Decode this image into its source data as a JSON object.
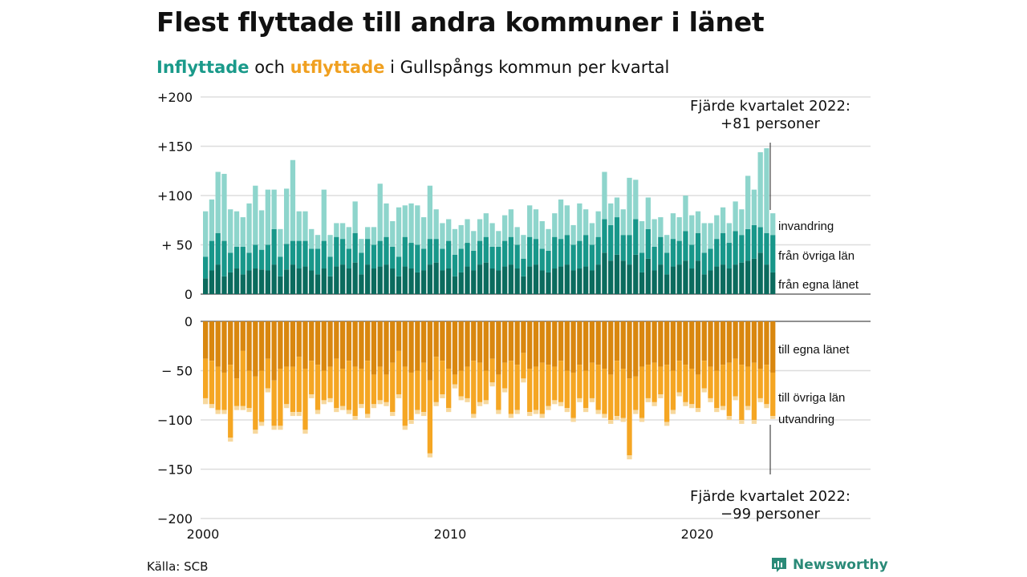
{
  "title": "Flest flyttade till andra kommuner i länet",
  "subtitle": {
    "part1": "Inflyttade",
    "part2": " och ",
    "part3": "utflyttade",
    "part4": " i Gullspångs kommun per kvartal"
  },
  "source": "Källa: SCB",
  "logo": "Newsworthy",
  "colors": {
    "in_egna": "#0b6b5e",
    "in_ovriga": "#18978a",
    "in_invandring": "#8ed5cc",
    "out_egna": "#d9870f",
    "out_ovriga": "#f5a623",
    "out_utvandring": "#f7d89d"
  },
  "chart_data": [
    {
      "type": "bar",
      "stacked": true,
      "x_ticks": [
        "2000",
        "2010",
        "2020"
      ],
      "y_ticks": [
        "+200",
        "+150",
        "+100",
        "+ 50",
        "0"
      ],
      "ylim": [
        0,
        200
      ],
      "x": [
        "2000Q1",
        "2000Q2",
        "2000Q3",
        "2000Q4",
        "2001Q1",
        "2001Q2",
        "2001Q3",
        "2001Q4",
        "2002Q1",
        "2002Q2",
        "2002Q3",
        "2002Q4",
        "2003Q1",
        "2003Q2",
        "2003Q3",
        "2003Q4",
        "2004Q1",
        "2004Q2",
        "2004Q3",
        "2004Q4",
        "2005Q1",
        "2005Q2",
        "2005Q3",
        "2005Q4",
        "2006Q1",
        "2006Q2",
        "2006Q3",
        "2006Q4",
        "2007Q1",
        "2007Q2",
        "2007Q3",
        "2007Q4",
        "2008Q1",
        "2008Q2",
        "2008Q3",
        "2008Q4",
        "2009Q1",
        "2009Q2",
        "2009Q3",
        "2009Q4",
        "2010Q1",
        "2010Q2",
        "2010Q3",
        "2010Q4",
        "2011Q1",
        "2011Q2",
        "2011Q3",
        "2011Q4",
        "2012Q1",
        "2012Q2",
        "2012Q3",
        "2012Q4",
        "2013Q1",
        "2013Q2",
        "2013Q3",
        "2013Q4",
        "2014Q1",
        "2014Q2",
        "2014Q3",
        "2014Q4",
        "2015Q1",
        "2015Q2",
        "2015Q3",
        "2015Q4",
        "2016Q1",
        "2016Q2",
        "2016Q3",
        "2016Q4",
        "2017Q1",
        "2017Q2",
        "2017Q3",
        "2017Q4",
        "2018Q1",
        "2018Q2",
        "2018Q3",
        "2018Q4",
        "2019Q1",
        "2019Q2",
        "2019Q3",
        "2019Q4",
        "2020Q1",
        "2020Q2",
        "2020Q3",
        "2020Q4",
        "2021Q1",
        "2021Q2",
        "2021Q3",
        "2021Q4",
        "2022Q1",
        "2022Q2",
        "2022Q3",
        "2022Q4"
      ],
      "series": [
        {
          "name": "från egna länet",
          "values": [
            16,
            24,
            30,
            18,
            22,
            26,
            20,
            24,
            26,
            25,
            24,
            30,
            18,
            25,
            30,
            26,
            28,
            24,
            20,
            26,
            18,
            28,
            30,
            26,
            32,
            20,
            30,
            26,
            28,
            30,
            26,
            18,
            28,
            26,
            22,
            24,
            30,
            32,
            24,
            26,
            18,
            22,
            28,
            24,
            30,
            32,
            26,
            24,
            28,
            30,
            26,
            18,
            28,
            30,
            24,
            22,
            26,
            28,
            30,
            24,
            26,
            28,
            24,
            30,
            42,
            34,
            40,
            34,
            30,
            40,
            22,
            36,
            24,
            30,
            20,
            28,
            30,
            34,
            26,
            34,
            20,
            24,
            28,
            30,
            26,
            30,
            32,
            34,
            36,
            42,
            30,
            22
          ],
          "values_note": "from the bottom group"
        },
        {
          "name": "från övriga län",
          "values": [
            22,
            30,
            32,
            36,
            20,
            22,
            28,
            18,
            24,
            20,
            26,
            36,
            20,
            26,
            24,
            28,
            26,
            22,
            26,
            28,
            20,
            30,
            26,
            20,
            30,
            22,
            26,
            24,
            26,
            28,
            22,
            20,
            30,
            26,
            28,
            22,
            26,
            24,
            22,
            28,
            22,
            24,
            24,
            20,
            24,
            26,
            22,
            24,
            26,
            28,
            24,
            18,
            30,
            26,
            22,
            22,
            32,
            28,
            30,
            26,
            28,
            32,
            26,
            28,
            34,
            36,
            38,
            26,
            30,
            36,
            20,
            30,
            24,
            28,
            22,
            28,
            24,
            30,
            24,
            28,
            22,
            22,
            28,
            32,
            26,
            34,
            28,
            32,
            34,
            26,
            32,
            38
          ]
        },
        {
          "name": "invandring",
          "values": [
            46,
            42,
            62,
            68,
            44,
            36,
            30,
            50,
            60,
            40,
            56,
            40,
            28,
            56,
            82,
            30,
            30,
            20,
            14,
            52,
            22,
            14,
            16,
            22,
            32,
            14,
            12,
            18,
            58,
            34,
            26,
            50,
            32,
            40,
            40,
            32,
            54,
            30,
            26,
            22,
            26,
            24,
            24,
            20,
            22,
            24,
            24,
            16,
            26,
            28,
            18,
            24,
            32,
            30,
            28,
            22,
            24,
            40,
            30,
            20,
            38,
            26,
            22,
            26,
            48,
            22,
            20,
            26,
            58,
            40,
            32,
            32,
            28,
            20,
            18,
            26,
            24,
            36,
            30,
            22,
            30,
            26,
            24,
            26,
            20,
            30,
            26,
            54,
            36,
            76,
            86,
            22
          ]
        }
      ]
    },
    {
      "type": "bar",
      "stacked": true,
      "x_ticks": [
        "2000",
        "2010",
        "2020"
      ],
      "y_ticks": [
        "0",
        "− 50",
        "−100",
        "−150",
        "−200"
      ],
      "ylim": [
        -200,
        0
      ],
      "x_note": "same quarters as above",
      "series": [
        {
          "name": "till egna länet",
          "values": [
            -38,
            -40,
            -46,
            -52,
            -44,
            -58,
            -30,
            -50,
            -56,
            -50,
            -38,
            -60,
            -48,
            -46,
            -46,
            -36,
            -48,
            -40,
            -44,
            -50,
            -46,
            -38,
            -48,
            -40,
            -46,
            -48,
            -40,
            -54,
            -46,
            -54,
            -42,
            -30,
            -46,
            -52,
            -50,
            -42,
            -60,
            -36,
            -40,
            -48,
            -54,
            -50,
            -46,
            -40,
            -42,
            -50,
            -38,
            -54,
            -42,
            -40,
            -44,
            -32,
            -48,
            -46,
            -42,
            -44,
            -46,
            -40,
            -50,
            -52,
            -44,
            -50,
            -42,
            -44,
            -48,
            -54,
            -40,
            -48,
            -58,
            -56,
            -46,
            -44,
            -42,
            -46,
            -44,
            -50,
            -40,
            -44,
            -48,
            -54,
            -40,
            -46,
            -50,
            -44,
            -42,
            -38,
            -44,
            -46,
            -42,
            -48,
            -44,
            -52
          ]
        },
        {
          "name": "till övriga län",
          "values": [
            -40,
            -44,
            -44,
            -38,
            -74,
            -28,
            -56,
            -38,
            -54,
            -52,
            -30,
            -46,
            -58,
            -38,
            -46,
            -56,
            -62,
            -34,
            -46,
            -30,
            -32,
            -50,
            -38,
            -50,
            -50,
            -36,
            -54,
            -30,
            -34,
            -28,
            -50,
            -44,
            -60,
            -48,
            -40,
            -50,
            -74,
            -46,
            -34,
            -40,
            -10,
            -26,
            -32,
            -54,
            -40,
            -30,
            -24,
            -36,
            -26,
            -54,
            -46,
            -26,
            -44,
            -44,
            -52,
            -42,
            -34,
            -42,
            -38,
            -46,
            -34,
            -38,
            -36,
            -46,
            -46,
            -46,
            -56,
            -50,
            -78,
            -34,
            -52,
            -34,
            -40,
            -28,
            -58,
            -40,
            -32,
            -38,
            -36,
            -34,
            -28,
            -32,
            -38,
            -42,
            -54,
            -38,
            -56,
            -40,
            -58,
            -30,
            -40,
            -44
          ]
        },
        {
          "name": "utvandring",
          "values": [
            -6,
            -4,
            -4,
            -4,
            -4,
            -4,
            -4,
            -4,
            -4,
            -4,
            -4,
            -4,
            -4,
            -4,
            -4,
            -4,
            -4,
            -4,
            -4,
            -4,
            -4,
            -4,
            -4,
            -4,
            -4,
            -4,
            -4,
            -4,
            -4,
            -4,
            -4,
            -4,
            -4,
            -4,
            -4,
            -4,
            -4,
            -4,
            -4,
            -4,
            -4,
            -4,
            -4,
            -4,
            -4,
            -4,
            -4,
            -4,
            -4,
            -4,
            -4,
            -4,
            -4,
            -4,
            -4,
            -4,
            -4,
            -4,
            -4,
            -4,
            -4,
            -4,
            -4,
            -4,
            -4,
            -4,
            -4,
            -4,
            -4,
            -4,
            -4,
            -4,
            -4,
            -4,
            -4,
            -4,
            -4,
            -4,
            -4,
            -4,
            -4,
            -4,
            -4,
            -4,
            -4,
            -4,
            -4,
            -4,
            -4,
            -4,
            -4,
            -3
          ]
        }
      ]
    }
  ],
  "annotations": {
    "top_line1": "Fjärde kvartalet 2022:",
    "top_line2": "+81 personer",
    "bottom_line1": "Fjärde kvartalet 2022:",
    "bottom_line2": "−99 personer"
  }
}
